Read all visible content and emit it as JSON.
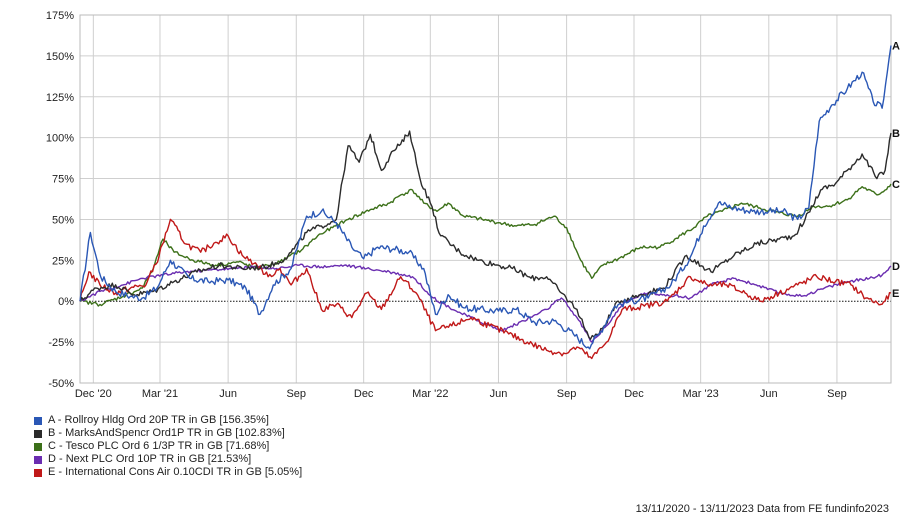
{
  "chart_data": {
    "type": "line",
    "xlabels": [
      "Dec '20",
      "Mar '21",
      "Jun",
      "Sep",
      "Dec",
      "Mar '22",
      "Jun",
      "Sep",
      "Dec",
      "Mar '23",
      "Jun",
      "Sep"
    ],
    "yticks": [
      "175%",
      "150%",
      "125%",
      "100%",
      "75%",
      "50%",
      "25%",
      "0%",
      "-25%",
      "-50%"
    ],
    "ylim": [
      -50,
      175
    ],
    "xlim": [
      "2020-11-13",
      "2023-11-13"
    ],
    "grid": true,
    "legend_position": "bottom-left",
    "series": [
      {
        "name": "A - Rollroy Hldg Ord 20P TR in GB [156.35%]",
        "label": "A",
        "color": "#2a57b5",
        "final": 156.35,
        "points": [
          [
            "2020-11-13",
            0
          ],
          [
            "2020-11-27",
            42
          ],
          [
            "2020-12-11",
            15
          ],
          [
            "2020-12-31",
            6
          ],
          [
            "2021-01-20",
            3
          ],
          [
            "2021-02-05",
            2
          ],
          [
            "2021-02-25",
            8
          ],
          [
            "2021-03-15",
            25
          ],
          [
            "2021-04-10",
            14
          ],
          [
            "2021-05-05",
            12
          ],
          [
            "2021-06-01",
            13
          ],
          [
            "2021-06-25",
            8
          ],
          [
            "2021-07-14",
            -8
          ],
          [
            "2021-08-01",
            10
          ],
          [
            "2021-08-25",
            20
          ],
          [
            "2021-09-15",
            52
          ],
          [
            "2021-10-05",
            55
          ],
          [
            "2021-10-25",
            48
          ],
          [
            "2021-11-15",
            33
          ],
          [
            "2021-12-01",
            26
          ],
          [
            "2021-12-20",
            33
          ],
          [
            "2022-01-10",
            32
          ],
          [
            "2022-01-31",
            30
          ],
          [
            "2022-02-20",
            20
          ],
          [
            "2022-03-08",
            -8
          ],
          [
            "2022-03-25",
            4
          ],
          [
            "2022-04-15",
            -4
          ],
          [
            "2022-05-06",
            -5
          ],
          [
            "2022-06-01",
            -6
          ],
          [
            "2022-06-25",
            -5
          ],
          [
            "2022-07-20",
            -13
          ],
          [
            "2022-08-15",
            -12
          ],
          [
            "2022-09-10",
            -20
          ],
          [
            "2022-09-30",
            -28
          ],
          [
            "2022-10-15",
            -20
          ],
          [
            "2022-11-05",
            -3
          ],
          [
            "2022-11-25",
            0
          ],
          [
            "2022-12-20",
            2
          ],
          [
            "2023-01-20",
            10
          ],
          [
            "2023-02-15",
            27
          ],
          [
            "2023-03-05",
            46
          ],
          [
            "2023-03-25",
            60
          ],
          [
            "2023-04-15",
            57
          ],
          [
            "2023-05-10",
            55
          ],
          [
            "2023-06-01",
            55
          ],
          [
            "2023-06-20",
            55
          ],
          [
            "2023-07-10",
            50
          ],
          [
            "2023-07-25",
            57
          ],
          [
            "2023-08-08",
            110
          ],
          [
            "2023-08-25",
            120
          ],
          [
            "2023-09-15",
            130
          ],
          [
            "2023-10-05",
            140
          ],
          [
            "2023-10-20",
            122
          ],
          [
            "2023-11-01",
            118
          ],
          [
            "2023-11-08",
            140
          ],
          [
            "2023-11-13",
            156.35
          ]
        ]
      },
      {
        "name": "B - MarksAndSpencr Ord1P TR in GB [102.83%]",
        "label": "B",
        "color": "#2b2b2b",
        "final": 102.83,
        "points": [
          [
            "2020-11-13",
            0
          ],
          [
            "2020-12-05",
            8
          ],
          [
            "2020-12-31",
            10
          ],
          [
            "2021-01-25",
            4
          ],
          [
            "2021-02-20",
            6
          ],
          [
            "2021-03-20",
            12
          ],
          [
            "2021-04-20",
            18
          ],
          [
            "2021-05-20",
            22
          ],
          [
            "2021-06-20",
            20
          ],
          [
            "2021-07-20",
            21
          ],
          [
            "2021-08-10",
            24
          ],
          [
            "2021-08-25",
            30
          ],
          [
            "2021-09-15",
            42
          ],
          [
            "2021-10-05",
            46
          ],
          [
            "2021-10-25",
            50
          ],
          [
            "2021-11-10",
            95
          ],
          [
            "2021-11-25",
            85
          ],
          [
            "2021-12-10",
            102
          ],
          [
            "2021-12-25",
            80
          ],
          [
            "2022-01-10",
            92
          ],
          [
            "2022-01-20",
            96
          ],
          [
            "2022-02-01",
            104
          ],
          [
            "2022-02-15",
            75
          ],
          [
            "2022-03-01",
            60
          ],
          [
            "2022-03-15",
            40
          ],
          [
            "2022-04-10",
            30
          ],
          [
            "2022-05-05",
            25
          ],
          [
            "2022-06-01",
            22
          ],
          [
            "2022-06-20",
            20
          ],
          [
            "2022-07-15",
            14
          ],
          [
            "2022-08-05",
            15
          ],
          [
            "2022-08-25",
            5
          ],
          [
            "2022-09-15",
            -5
          ],
          [
            "2022-10-01",
            -22
          ],
          [
            "2022-10-15",
            -20
          ],
          [
            "2022-11-10",
            0
          ],
          [
            "2022-12-10",
            4
          ],
          [
            "2023-01-10",
            8
          ],
          [
            "2023-02-10",
            28
          ],
          [
            "2023-03-15",
            18
          ],
          [
            "2023-04-15",
            28
          ],
          [
            "2023-05-15",
            35
          ],
          [
            "2023-06-15",
            38
          ],
          [
            "2023-07-05",
            40
          ],
          [
            "2023-07-20",
            50
          ],
          [
            "2023-08-10",
            68
          ],
          [
            "2023-08-30",
            72
          ],
          [
            "2023-09-15",
            80
          ],
          [
            "2023-10-05",
            90
          ],
          [
            "2023-10-25",
            75
          ],
          [
            "2023-11-05",
            80
          ],
          [
            "2023-11-13",
            102.83
          ]
        ]
      },
      {
        "name": "C - Tesco PLC Ord 6 1/3P TR in GB [71.68%]",
        "label": "C",
        "color": "#3c7019",
        "final": 71.68,
        "points": [
          [
            "2020-11-13",
            0
          ],
          [
            "2020-12-10",
            -2
          ],
          [
            "2021-01-10",
            3
          ],
          [
            "2021-02-05",
            8
          ],
          [
            "2021-02-20",
            20
          ],
          [
            "2021-03-05",
            38
          ],
          [
            "2021-03-20",
            30
          ],
          [
            "2021-04-15",
            25
          ],
          [
            "2021-05-15",
            22
          ],
          [
            "2021-06-15",
            24
          ],
          [
            "2021-07-10",
            20
          ],
          [
            "2021-08-10",
            24
          ],
          [
            "2021-09-10",
            32
          ],
          [
            "2021-09-30",
            40
          ],
          [
            "2021-10-20",
            45
          ],
          [
            "2021-11-10",
            50
          ],
          [
            "2021-12-10",
            56
          ],
          [
            "2022-01-05",
            60
          ],
          [
            "2022-01-20",
            65
          ],
          [
            "2022-02-05",
            68
          ],
          [
            "2022-02-20",
            60
          ],
          [
            "2022-03-10",
            55
          ],
          [
            "2022-03-25",
            60
          ],
          [
            "2022-04-15",
            52
          ],
          [
            "2022-05-10",
            50
          ],
          [
            "2022-06-01",
            48
          ],
          [
            "2022-06-25",
            46
          ],
          [
            "2022-07-20",
            47
          ],
          [
            "2022-08-15",
            52
          ],
          [
            "2022-09-01",
            45
          ],
          [
            "2022-09-20",
            25
          ],
          [
            "2022-10-05",
            14
          ],
          [
            "2022-10-20",
            22
          ],
          [
            "2022-11-10",
            26
          ],
          [
            "2022-12-10",
            33
          ],
          [
            "2023-01-05",
            33
          ],
          [
            "2023-01-25",
            38
          ],
          [
            "2023-02-20",
            45
          ],
          [
            "2023-03-10",
            52
          ],
          [
            "2023-03-30",
            55
          ],
          [
            "2023-04-25",
            60
          ],
          [
            "2023-05-20",
            57
          ],
          [
            "2023-06-15",
            54
          ],
          [
            "2023-07-10",
            52
          ],
          [
            "2023-08-01",
            58
          ],
          [
            "2023-08-20",
            58
          ],
          [
            "2023-09-15",
            62
          ],
          [
            "2023-10-05",
            70
          ],
          [
            "2023-10-25",
            65
          ],
          [
            "2023-11-05",
            68
          ],
          [
            "2023-11-13",
            71.68
          ]
        ]
      },
      {
        "name": "D - Next PLC Ord 10P TR in GB [21.53%]",
        "label": "D",
        "color": "#6a2db0",
        "final": 21.53,
        "points": [
          [
            "2020-11-13",
            0
          ],
          [
            "2020-12-10",
            6
          ],
          [
            "2021-01-10",
            10
          ],
          [
            "2021-02-05",
            14
          ],
          [
            "2021-03-05",
            16
          ],
          [
            "2021-04-05",
            18
          ],
          [
            "2021-05-05",
            19
          ],
          [
            "2021-06-05",
            20
          ],
          [
            "2021-07-05",
            21
          ],
          [
            "2021-08-05",
            20
          ],
          [
            "2021-09-05",
            22
          ],
          [
            "2021-10-05",
            21
          ],
          [
            "2021-11-05",
            22
          ],
          [
            "2021-12-05",
            20
          ],
          [
            "2022-01-05",
            18
          ],
          [
            "2022-02-05",
            15
          ],
          [
            "2022-03-05",
            2
          ],
          [
            "2022-04-05",
            -6
          ],
          [
            "2022-05-05",
            -12
          ],
          [
            "2022-06-05",
            -18
          ],
          [
            "2022-07-05",
            -12
          ],
          [
            "2022-08-05",
            -5
          ],
          [
            "2022-08-25",
            2
          ],
          [
            "2022-09-15",
            -10
          ],
          [
            "2022-10-05",
            -25
          ],
          [
            "2022-10-25",
            -15
          ],
          [
            "2022-11-15",
            -2
          ],
          [
            "2022-12-15",
            5
          ],
          [
            "2023-01-15",
            4
          ],
          [
            "2023-02-15",
            2
          ],
          [
            "2023-03-15",
            10
          ],
          [
            "2023-04-15",
            14
          ],
          [
            "2023-05-15",
            10
          ],
          [
            "2023-06-15",
            5
          ],
          [
            "2023-07-15",
            3
          ],
          [
            "2023-08-15",
            8
          ],
          [
            "2023-09-15",
            12
          ],
          [
            "2023-10-15",
            14
          ],
          [
            "2023-11-01",
            16
          ],
          [
            "2023-11-13",
            21.53
          ]
        ]
      },
      {
        "name": "E - International Cons Air 0.10CDI TR in GB [5.05%]",
        "label": "E",
        "color": "#c01818",
        "final": 5.05,
        "points": [
          [
            "2020-11-13",
            0
          ],
          [
            "2020-11-25",
            18
          ],
          [
            "2020-12-10",
            10
          ],
          [
            "2020-12-31",
            5
          ],
          [
            "2021-01-20",
            8
          ],
          [
            "2021-02-10",
            10
          ],
          [
            "2021-02-28",
            28
          ],
          [
            "2021-03-15",
            50
          ],
          [
            "2021-04-05",
            35
          ],
          [
            "2021-04-25",
            30
          ],
          [
            "2021-05-15",
            36
          ],
          [
            "2021-06-01",
            40
          ],
          [
            "2021-06-20",
            28
          ],
          [
            "2021-07-10",
            22
          ],
          [
            "2021-07-25",
            15
          ],
          [
            "2021-08-10",
            20
          ],
          [
            "2021-08-25",
            10
          ],
          [
            "2021-09-15",
            20
          ],
          [
            "2021-10-05",
            -5
          ],
          [
            "2021-10-25",
            -2
          ],
          [
            "2021-11-15",
            -10
          ],
          [
            "2021-12-05",
            5
          ],
          [
            "2021-12-25",
            -5
          ],
          [
            "2022-01-20",
            15
          ],
          [
            "2022-02-10",
            5
          ],
          [
            "2022-03-08",
            -18
          ],
          [
            "2022-03-30",
            -15
          ],
          [
            "2022-04-25",
            -10
          ],
          [
            "2022-05-20",
            -15
          ],
          [
            "2022-06-15",
            -20
          ],
          [
            "2022-07-10",
            -25
          ],
          [
            "2022-08-05",
            -30
          ],
          [
            "2022-08-30",
            -32
          ],
          [
            "2022-09-15",
            -28
          ],
          [
            "2022-10-05",
            -35
          ],
          [
            "2022-10-25",
            -25
          ],
          [
            "2022-11-15",
            -5
          ],
          [
            "2022-12-15",
            -3
          ],
          [
            "2023-01-15",
            0
          ],
          [
            "2023-02-15",
            15
          ],
          [
            "2023-03-10",
            10
          ],
          [
            "2023-04-05",
            10
          ],
          [
            "2023-04-30",
            5
          ],
          [
            "2023-05-20",
            0
          ],
          [
            "2023-06-15",
            5
          ],
          [
            "2023-07-10",
            10
          ],
          [
            "2023-08-05",
            15
          ],
          [
            "2023-08-30",
            12
          ],
          [
            "2023-09-20",
            10
          ],
          [
            "2023-10-10",
            2
          ],
          [
            "2023-10-30",
            -2
          ],
          [
            "2023-11-05",
            0
          ],
          [
            "2023-11-13",
            5.05
          ]
        ]
      }
    ]
  },
  "footer": "13/11/2020 - 13/11/2023 Data from FE fundinfo2023"
}
